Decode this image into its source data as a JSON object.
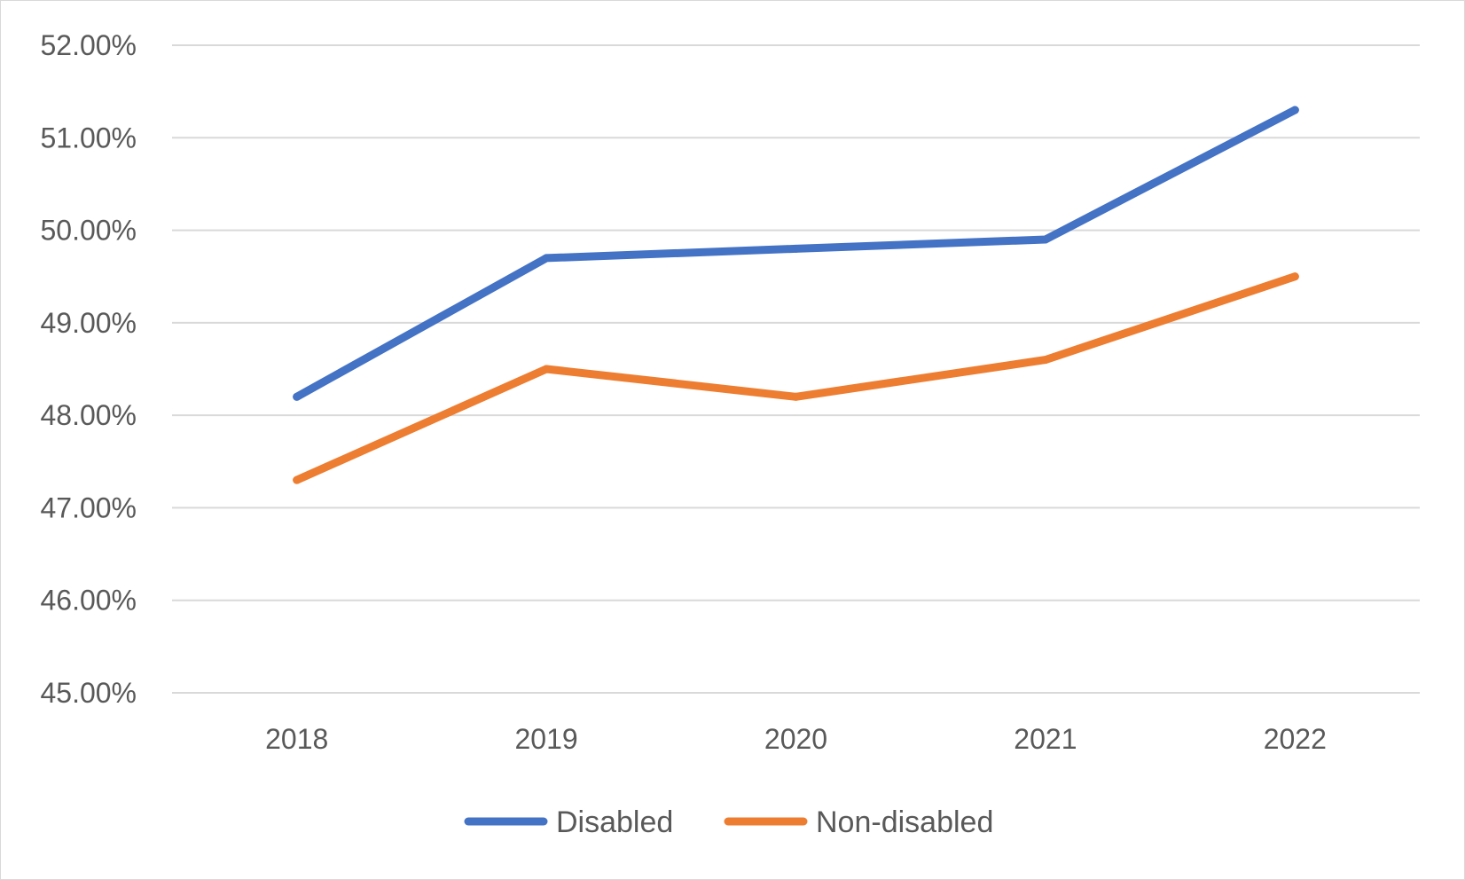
{
  "chart_data": {
    "type": "line",
    "title": "",
    "xlabel": "",
    "ylabel": "",
    "categories": [
      "2018",
      "2019",
      "2020",
      "2021",
      "2022"
    ],
    "ylim": [
      45.0,
      52.0
    ],
    "yticks": [
      {
        "value": 45.0,
        "label": "45.00%"
      },
      {
        "value": 46.0,
        "label": "46.00%"
      },
      {
        "value": 47.0,
        "label": "47.00%"
      },
      {
        "value": 48.0,
        "label": "48.00%"
      },
      {
        "value": 49.0,
        "label": "49.00%"
      },
      {
        "value": 50.0,
        "label": "50.00%"
      },
      {
        "value": 51.0,
        "label": "51.00%"
      },
      {
        "value": 52.0,
        "label": "52.00%"
      }
    ],
    "grid": true,
    "legend_position": "bottom",
    "series": [
      {
        "name": "Disabled",
        "color": "#4472c4",
        "values": [
          48.2,
          49.7,
          49.8,
          49.9,
          51.3
        ]
      },
      {
        "name": "Non-disabled",
        "color": "#ed7d31",
        "values": [
          47.3,
          48.5,
          48.2,
          48.6,
          49.5
        ]
      }
    ]
  }
}
